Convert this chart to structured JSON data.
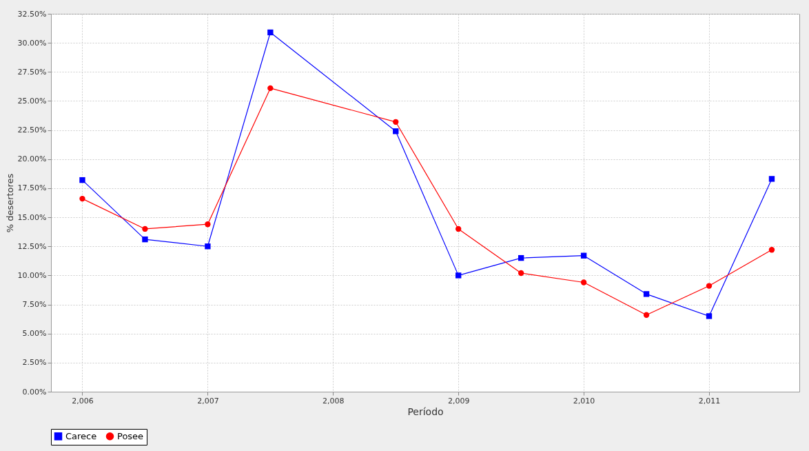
{
  "chart_data": {
    "type": "line",
    "xlabel": "Período",
    "ylabel": "% desertores",
    "x": [
      2006,
      2006.5,
      2007,
      2007.5,
      2008.5,
      2009,
      2009.5,
      2010,
      2010.5,
      2011,
      2011.5
    ],
    "series": [
      {
        "name": "Carece",
        "color": "#0000ff",
        "marker": "square",
        "values": [
          18.2,
          13.1,
          12.5,
          30.9,
          22.4,
          10.0,
          11.5,
          11.7,
          8.4,
          6.5,
          18.3
        ]
      },
      {
        "name": "Posee",
        "color": "#ff0000",
        "marker": "circle",
        "values": [
          16.6,
          14.0,
          14.4,
          26.1,
          23.2,
          14.0,
          10.2,
          9.4,
          6.6,
          9.1,
          12.2
        ]
      }
    ],
    "xlim": [
      2005.75,
      2011.72
    ],
    "xticks": [
      {
        "value": 2006,
        "label": "2,006"
      },
      {
        "value": 2007,
        "label": "2,007"
      },
      {
        "value": 2008,
        "label": "2,008"
      },
      {
        "value": 2009,
        "label": "2,009"
      },
      {
        "value": 2010,
        "label": "2,010"
      },
      {
        "value": 2011,
        "label": "2,011"
      }
    ],
    "ylim": [
      0,
      32.5
    ],
    "yticks": [
      {
        "value": 0,
        "label": "0.00%"
      },
      {
        "value": 2.5,
        "label": "2.50%"
      },
      {
        "value": 5,
        "label": "5.00%"
      },
      {
        "value": 7.5,
        "label": "7.50%"
      },
      {
        "value": 10,
        "label": "10.00%"
      },
      {
        "value": 12.5,
        "label": "12.50%"
      },
      {
        "value": 15,
        "label": "15.00%"
      },
      {
        "value": 17.5,
        "label": "17.50%"
      },
      {
        "value": 20,
        "label": "20.00%"
      },
      {
        "value": 22.5,
        "label": "22.50%"
      },
      {
        "value": 25,
        "label": "25.00%"
      },
      {
        "value": 27.5,
        "label": "27.50%"
      },
      {
        "value": 30,
        "label": "30.00%"
      },
      {
        "value": 32.5,
        "label": "32.50%"
      }
    ],
    "grid": true,
    "legend": "bottom",
    "line_style": "solid"
  }
}
